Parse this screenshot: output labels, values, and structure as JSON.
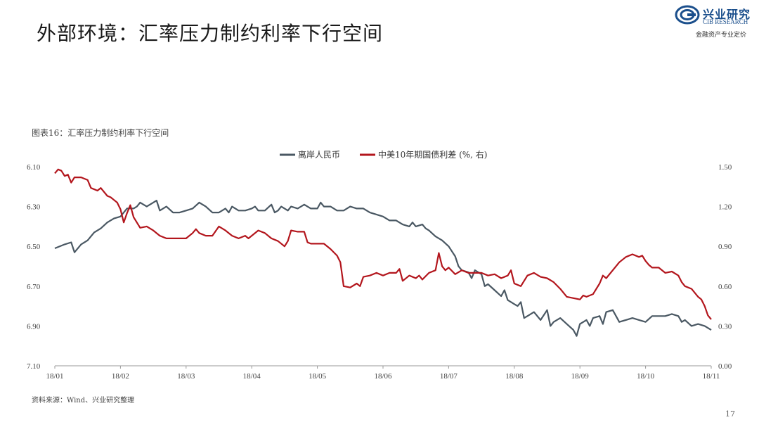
{
  "slide": {
    "title": "外部环境：汇率压力制约利率下行空间",
    "page_number": "17"
  },
  "logo": {
    "name_cn": "兴业研究",
    "name_en": "CIB RESEARCH",
    "tagline": "金融资产专业定价"
  },
  "chart_caption": "图表16：汇率压力制约利率下行空间",
  "source_note": "资料来源：Wind、兴业研究整理",
  "colors": {
    "cny": "#4a5863",
    "spread": "#b3161d"
  },
  "chart_data": {
    "type": "line",
    "x_ticks": [
      "18/01",
      "18/02",
      "18/03",
      "18/04",
      "18/05",
      "18/06",
      "18/07",
      "18/08",
      "18/09",
      "18/10",
      "18/11"
    ],
    "x_domain": [
      0,
      10
    ],
    "left_axis": {
      "ticks": [
        "6.10",
        "6.30",
        "6.50",
        "6.70",
        "6.90",
        "7.10"
      ],
      "range": [
        6.1,
        7.1
      ],
      "inverted": true
    },
    "right_axis": {
      "ticks": [
        "1.50",
        "1.20",
        "0.90",
        "0.60",
        "0.30",
        "0.00"
      ],
      "range": [
        0.0,
        1.5
      ]
    },
    "grid": false,
    "legend_position": "top-center",
    "series": [
      {
        "name": "离岸人民币",
        "axis": "left",
        "color": "#4a5863",
        "points": [
          [
            0,
            6.51
          ],
          [
            0.15,
            6.49
          ],
          [
            0.25,
            6.48
          ],
          [
            0.3,
            6.53
          ],
          [
            0.4,
            6.49
          ],
          [
            0.5,
            6.47
          ],
          [
            0.6,
            6.43
          ],
          [
            0.7,
            6.41
          ],
          [
            0.8,
            6.38
          ],
          [
            0.9,
            6.36
          ],
          [
            1.0,
            6.35
          ],
          [
            1.05,
            6.33
          ],
          [
            1.1,
            6.31
          ],
          [
            1.2,
            6.31
          ],
          [
            1.25,
            6.3
          ],
          [
            1.3,
            6.28
          ],
          [
            1.4,
            6.3
          ],
          [
            1.5,
            6.28
          ],
          [
            1.55,
            6.27
          ],
          [
            1.6,
            6.32
          ],
          [
            1.7,
            6.3
          ],
          [
            1.8,
            6.33
          ],
          [
            1.9,
            6.33
          ],
          [
            2.0,
            6.32
          ],
          [
            2.1,
            6.31
          ],
          [
            2.2,
            6.28
          ],
          [
            2.3,
            6.3
          ],
          [
            2.4,
            6.33
          ],
          [
            2.5,
            6.33
          ],
          [
            2.6,
            6.31
          ],
          [
            2.65,
            6.33
          ],
          [
            2.7,
            6.3
          ],
          [
            2.8,
            6.32
          ],
          [
            2.9,
            6.32
          ],
          [
            3.0,
            6.31
          ],
          [
            3.05,
            6.3
          ],
          [
            3.1,
            6.32
          ],
          [
            3.2,
            6.32
          ],
          [
            3.3,
            6.29
          ],
          [
            3.35,
            6.33
          ],
          [
            3.4,
            6.32
          ],
          [
            3.45,
            6.3
          ],
          [
            3.5,
            6.31
          ],
          [
            3.55,
            6.32
          ],
          [
            3.6,
            6.3
          ],
          [
            3.7,
            6.31
          ],
          [
            3.8,
            6.29
          ],
          [
            3.9,
            6.31
          ],
          [
            4.0,
            6.31
          ],
          [
            4.05,
            6.28
          ],
          [
            4.1,
            6.3
          ],
          [
            4.2,
            6.3
          ],
          [
            4.3,
            6.32
          ],
          [
            4.4,
            6.32
          ],
          [
            4.5,
            6.3
          ],
          [
            4.6,
            6.31
          ],
          [
            4.7,
            6.31
          ],
          [
            4.8,
            6.33
          ],
          [
            4.9,
            6.34
          ],
          [
            5.0,
            6.35
          ],
          [
            5.1,
            6.37
          ],
          [
            5.2,
            6.37
          ],
          [
            5.3,
            6.39
          ],
          [
            5.4,
            6.4
          ],
          [
            5.45,
            6.38
          ],
          [
            5.5,
            6.4
          ],
          [
            5.6,
            6.39
          ],
          [
            5.65,
            6.41
          ],
          [
            5.7,
            6.42
          ],
          [
            5.8,
            6.45
          ],
          [
            5.9,
            6.47
          ],
          [
            6.0,
            6.5
          ],
          [
            6.1,
            6.55
          ],
          [
            6.15,
            6.6
          ],
          [
            6.2,
            6.62
          ],
          [
            6.3,
            6.63
          ],
          [
            6.35,
            6.66
          ],
          [
            6.4,
            6.62
          ],
          [
            6.5,
            6.64
          ],
          [
            6.55,
            6.7
          ],
          [
            6.6,
            6.69
          ],
          [
            6.7,
            6.72
          ],
          [
            6.8,
            6.75
          ],
          [
            6.85,
            6.72
          ],
          [
            6.9,
            6.77
          ],
          [
            7.0,
            6.79
          ],
          [
            7.05,
            6.8
          ],
          [
            7.1,
            6.78
          ],
          [
            7.15,
            6.86
          ],
          [
            7.2,
            6.85
          ],
          [
            7.3,
            6.83
          ],
          [
            7.4,
            6.87
          ],
          [
            7.5,
            6.82
          ],
          [
            7.55,
            6.9
          ],
          [
            7.6,
            6.88
          ],
          [
            7.7,
            6.86
          ],
          [
            7.8,
            6.89
          ],
          [
            7.9,
            6.92
          ],
          [
            7.95,
            6.95
          ],
          [
            8.0,
            6.89
          ],
          [
            8.1,
            6.87
          ],
          [
            8.15,
            6.9
          ],
          [
            8.2,
            6.86
          ],
          [
            8.3,
            6.85
          ],
          [
            8.35,
            6.89
          ],
          [
            8.4,
            6.83
          ],
          [
            8.5,
            6.82
          ],
          [
            8.6,
            6.88
          ],
          [
            8.7,
            6.87
          ],
          [
            8.8,
            6.86
          ],
          [
            8.9,
            6.87
          ],
          [
            9.0,
            6.88
          ],
          [
            9.1,
            6.85
          ],
          [
            9.2,
            6.85
          ],
          [
            9.3,
            6.85
          ],
          [
            9.4,
            6.84
          ],
          [
            9.5,
            6.85
          ],
          [
            9.55,
            6.88
          ],
          [
            9.6,
            6.87
          ],
          [
            9.7,
            6.9
          ],
          [
            9.8,
            6.89
          ],
          [
            9.9,
            6.9
          ],
          [
            9.95,
            6.91
          ],
          [
            10.0,
            6.92
          ]
        ]
      },
      {
        "name": "中美10年期国债利差 (%, 右)",
        "axis": "right",
        "color": "#b3161d",
        "points": [
          [
            0,
            1.45
          ],
          [
            0.05,
            1.48
          ],
          [
            0.1,
            1.47
          ],
          [
            0.15,
            1.43
          ],
          [
            0.2,
            1.44
          ],
          [
            0.25,
            1.38
          ],
          [
            0.3,
            1.42
          ],
          [
            0.4,
            1.42
          ],
          [
            0.5,
            1.4
          ],
          [
            0.55,
            1.34
          ],
          [
            0.65,
            1.32
          ],
          [
            0.7,
            1.34
          ],
          [
            0.8,
            1.28
          ],
          [
            0.85,
            1.27
          ],
          [
            0.9,
            1.25
          ],
          [
            0.95,
            1.23
          ],
          [
            1.0,
            1.18
          ],
          [
            1.05,
            1.08
          ],
          [
            1.1,
            1.15
          ],
          [
            1.15,
            1.21
          ],
          [
            1.2,
            1.12
          ],
          [
            1.3,
            1.04
          ],
          [
            1.4,
            1.05
          ],
          [
            1.5,
            1.02
          ],
          [
            1.6,
            0.98
          ],
          [
            1.7,
            0.96
          ],
          [
            1.8,
            0.96
          ],
          [
            1.9,
            0.96
          ],
          [
            2.0,
            0.96
          ],
          [
            2.1,
            1.0
          ],
          [
            2.15,
            1.03
          ],
          [
            2.2,
            1.0
          ],
          [
            2.3,
            0.98
          ],
          [
            2.4,
            0.98
          ],
          [
            2.5,
            1.05
          ],
          [
            2.6,
            1.02
          ],
          [
            2.7,
            0.98
          ],
          [
            2.8,
            0.96
          ],
          [
            2.9,
            0.98
          ],
          [
            2.95,
            0.96
          ],
          [
            3.0,
            0.98
          ],
          [
            3.1,
            1.02
          ],
          [
            3.2,
            1.0
          ],
          [
            3.3,
            0.96
          ],
          [
            3.4,
            0.94
          ],
          [
            3.5,
            0.9
          ],
          [
            3.55,
            0.94
          ],
          [
            3.6,
            1.02
          ],
          [
            3.7,
            1.01
          ],
          [
            3.8,
            1.01
          ],
          [
            3.85,
            0.93
          ],
          [
            3.9,
            0.92
          ],
          [
            4.0,
            0.92
          ],
          [
            4.1,
            0.92
          ],
          [
            4.2,
            0.88
          ],
          [
            4.3,
            0.83
          ],
          [
            4.35,
            0.78
          ],
          [
            4.4,
            0.6
          ],
          [
            4.5,
            0.59
          ],
          [
            4.6,
            0.62
          ],
          [
            4.65,
            0.6
          ],
          [
            4.7,
            0.67
          ],
          [
            4.8,
            0.68
          ],
          [
            4.9,
            0.7
          ],
          [
            5.0,
            0.68
          ],
          [
            5.1,
            0.7
          ],
          [
            5.2,
            0.7
          ],
          [
            5.25,
            0.73
          ],
          [
            5.3,
            0.64
          ],
          [
            5.4,
            0.68
          ],
          [
            5.5,
            0.66
          ],
          [
            5.55,
            0.68
          ],
          [
            5.6,
            0.65
          ],
          [
            5.7,
            0.7
          ],
          [
            5.8,
            0.72
          ],
          [
            5.85,
            0.85
          ],
          [
            5.9,
            0.75
          ],
          [
            5.95,
            0.72
          ],
          [
            6.0,
            0.74
          ],
          [
            6.1,
            0.69
          ],
          [
            6.2,
            0.72
          ],
          [
            6.3,
            0.7
          ],
          [
            6.4,
            0.7
          ],
          [
            6.5,
            0.7
          ],
          [
            6.6,
            0.68
          ],
          [
            6.7,
            0.69
          ],
          [
            6.8,
            0.66
          ],
          [
            6.9,
            0.68
          ],
          [
            6.95,
            0.72
          ],
          [
            7.0,
            0.62
          ],
          [
            7.1,
            0.6
          ],
          [
            7.2,
            0.68
          ],
          [
            7.3,
            0.7
          ],
          [
            7.4,
            0.67
          ],
          [
            7.5,
            0.66
          ],
          [
            7.6,
            0.63
          ],
          [
            7.7,
            0.58
          ],
          [
            7.8,
            0.52
          ],
          [
            7.9,
            0.51
          ],
          [
            8.0,
            0.5
          ],
          [
            8.05,
            0.53
          ],
          [
            8.1,
            0.52
          ],
          [
            8.2,
            0.54
          ],
          [
            8.3,
            0.62
          ],
          [
            8.35,
            0.68
          ],
          [
            8.4,
            0.66
          ],
          [
            8.5,
            0.72
          ],
          [
            8.6,
            0.78
          ],
          [
            8.7,
            0.82
          ],
          [
            8.8,
            0.84
          ],
          [
            8.9,
            0.82
          ],
          [
            8.95,
            0.83
          ],
          [
            9.0,
            0.79
          ],
          [
            9.05,
            0.76
          ],
          [
            9.1,
            0.74
          ],
          [
            9.2,
            0.74
          ],
          [
            9.3,
            0.7
          ],
          [
            9.4,
            0.71
          ],
          [
            9.5,
            0.68
          ],
          [
            9.55,
            0.63
          ],
          [
            9.6,
            0.6
          ],
          [
            9.7,
            0.58
          ],
          [
            9.8,
            0.52
          ],
          [
            9.85,
            0.5
          ],
          [
            9.9,
            0.45
          ],
          [
            9.95,
            0.38
          ],
          [
            10.0,
            0.35
          ]
        ]
      }
    ]
  }
}
